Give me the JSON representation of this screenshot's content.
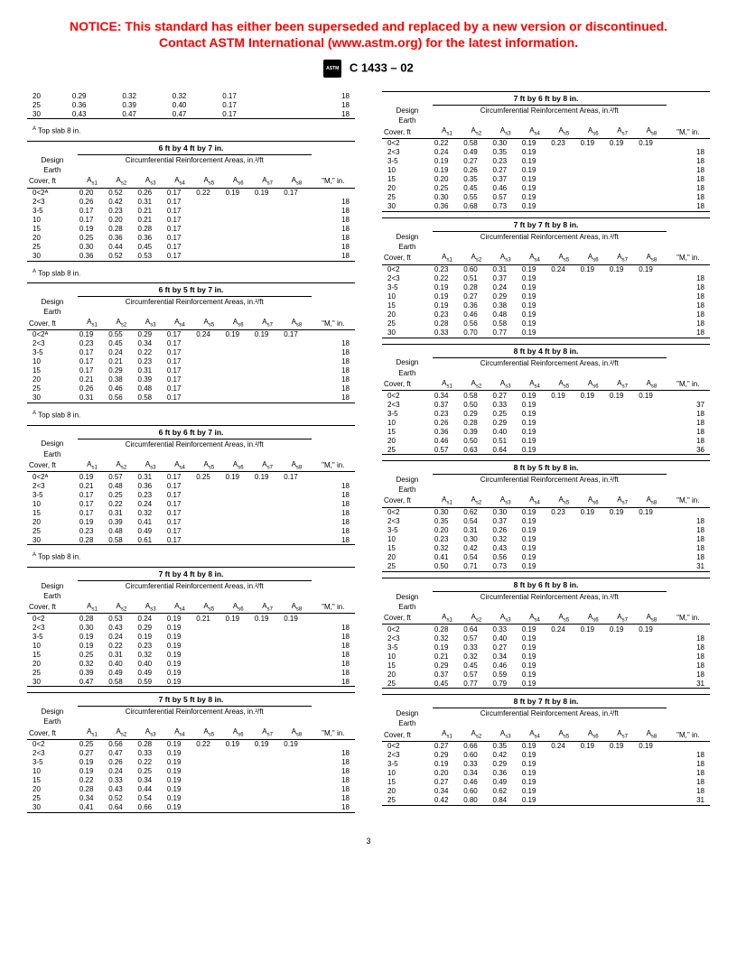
{
  "notice_line1": "NOTICE: This standard has either been superseded and replaced by a new version or discontinued.",
  "notice_line2": "Contact ASTM International (www.astm.org) for the latest information.",
  "standard": "C 1433 – 02",
  "page_number": "3",
  "col_headers": {
    "design": "Design",
    "earth": "Earth",
    "cover": "Cover, ft",
    "cra": "Circumferential Reinforcement Areas, in.²/ft",
    "a1": "A",
    "s1": "s1",
    "a2": "A",
    "s2": "s2",
    "a3": "A",
    "s3": "s3",
    "a4": "A",
    "s4": "s4",
    "a5": "A",
    "s5": "s5",
    "a6": "A",
    "s6": "s6",
    "a7": "A",
    "s7": "s7",
    "a8": "A",
    "s8": "s8",
    "m": "\"M,\" in."
  },
  "top_slab_note": "Top slab 8 in.",
  "sup_a": "A",
  "frag_rows": [
    [
      "20",
      "0.29",
      "0.32",
      "0.32",
      "0.17",
      "",
      "",
      "",
      "",
      "18"
    ],
    [
      "25",
      "0.36",
      "0.39",
      "0.40",
      "0.17",
      "",
      "",
      "",
      "",
      "18"
    ],
    [
      "30",
      "0.43",
      "0.47",
      "0.47",
      "0.17",
      "",
      "",
      "",
      "",
      "18"
    ]
  ],
  "tables": {
    "t6x4x7": {
      "title": "6 ft by 4 ft by 7 in.",
      "rows": [
        [
          "0<2ᴬ",
          "0.20",
          "0.52",
          "0.26",
          "0.17",
          "0.22",
          "0.19",
          "0.19",
          "0.17",
          ""
        ],
        [
          "2<3",
          "0.26",
          "0.42",
          "0.31",
          "0.17",
          "",
          "",
          "",
          "",
          "18"
        ],
        [
          "3-5",
          "0.17",
          "0.23",
          "0.21",
          "0.17",
          "",
          "",
          "",
          "",
          "18"
        ],
        [
          "10",
          "0.17",
          "0.20",
          "0.21",
          "0.17",
          "",
          "",
          "",
          "",
          "18"
        ],
        [
          "15",
          "0.19",
          "0.28",
          "0.28",
          "0.17",
          "",
          "",
          "",
          "",
          "18"
        ],
        [
          "20",
          "0.25",
          "0.36",
          "0.36",
          "0.17",
          "",
          "",
          "",
          "",
          "18"
        ],
        [
          "25",
          "0.30",
          "0.44",
          "0.45",
          "0.17",
          "",
          "",
          "",
          "",
          "18"
        ],
        [
          "30",
          "0.36",
          "0.52",
          "0.53",
          "0.17",
          "",
          "",
          "",
          "",
          "18"
        ]
      ]
    },
    "t6x5x7": {
      "title": "6 ft by 5 ft by 7 in.",
      "rows": [
        [
          "0<2ᴬ",
          "0.19",
          "0.55",
          "0.29",
          "0.17",
          "0.24",
          "0.19",
          "0.19",
          "0.17",
          ""
        ],
        [
          "2<3",
          "0.23",
          "0.45",
          "0.34",
          "0.17",
          "",
          "",
          "",
          "",
          "18"
        ],
        [
          "3-5",
          "0.17",
          "0.24",
          "0.22",
          "0.17",
          "",
          "",
          "",
          "",
          "18"
        ],
        [
          "10",
          "0.17",
          "0.21",
          "0.23",
          "0.17",
          "",
          "",
          "",
          "",
          "18"
        ],
        [
          "15",
          "0.17",
          "0.29",
          "0.31",
          "0.17",
          "",
          "",
          "",
          "",
          "18"
        ],
        [
          "20",
          "0.21",
          "0.38",
          "0.39",
          "0.17",
          "",
          "",
          "",
          "",
          "18"
        ],
        [
          "25",
          "0.26",
          "0.46",
          "0.48",
          "0.17",
          "",
          "",
          "",
          "",
          "18"
        ],
        [
          "30",
          "0.31",
          "0.56",
          "0.58",
          "0.17",
          "",
          "",
          "",
          "",
          "18"
        ]
      ]
    },
    "t6x6x7": {
      "title": "6 ft by 6 ft by 7 in.",
      "rows": [
        [
          "0<2ᴬ",
          "0.19",
          "0.57",
          "0.31",
          "0.17",
          "0.25",
          "0.19",
          "0.19",
          "0.17",
          ""
        ],
        [
          "2<3",
          "0.21",
          "0.48",
          "0.36",
          "0.17",
          "",
          "",
          "",
          "",
          "18"
        ],
        [
          "3-5",
          "0.17",
          "0.25",
          "0.23",
          "0.17",
          "",
          "",
          "",
          "",
          "18"
        ],
        [
          "10",
          "0.17",
          "0.22",
          "0.24",
          "0.17",
          "",
          "",
          "",
          "",
          "18"
        ],
        [
          "15",
          "0.17",
          "0.31",
          "0.32",
          "0.17",
          "",
          "",
          "",
          "",
          "18"
        ],
        [
          "20",
          "0.19",
          "0.39",
          "0.41",
          "0.17",
          "",
          "",
          "",
          "",
          "18"
        ],
        [
          "25",
          "0.23",
          "0.48",
          "0.49",
          "0.17",
          "",
          "",
          "",
          "",
          "18"
        ],
        [
          "30",
          "0.28",
          "0.58",
          "0.61",
          "0.17",
          "",
          "",
          "",
          "",
          "18"
        ]
      ]
    },
    "t7x4x8": {
      "title": "7 ft by 4 ft by 8 in.",
      "rows": [
        [
          "0<2",
          "0.28",
          "0.53",
          "0.24",
          "0.19",
          "0.21",
          "0.19",
          "0.19",
          "0.19",
          ""
        ],
        [
          "2<3",
          "0.30",
          "0.43",
          "0.29",
          "0.19",
          "",
          "",
          "",
          "",
          "18"
        ],
        [
          "3-5",
          "0.19",
          "0.24",
          "0.19",
          "0.19",
          "",
          "",
          "",
          "",
          "18"
        ],
        [
          "10",
          "0.19",
          "0.22",
          "0.23",
          "0.19",
          "",
          "",
          "",
          "",
          "18"
        ],
        [
          "15",
          "0.25",
          "0.31",
          "0.32",
          "0.19",
          "",
          "",
          "",
          "",
          "18"
        ],
        [
          "20",
          "0.32",
          "0.40",
          "0.40",
          "0.19",
          "",
          "",
          "",
          "",
          "18"
        ],
        [
          "25",
          "0.39",
          "0.49",
          "0.49",
          "0.19",
          "",
          "",
          "",
          "",
          "18"
        ],
        [
          "30",
          "0.47",
          "0.58",
          "0.59",
          "0.19",
          "",
          "",
          "",
          "",
          "18"
        ]
      ]
    },
    "t7x5x8": {
      "title": "7 ft by 5 ft by 8 in.",
      "rows": [
        [
          "0<2",
          "0.25",
          "0.56",
          "0.28",
          "0.19",
          "0.22",
          "0.19",
          "0.19",
          "0.19",
          ""
        ],
        [
          "2<3",
          "0.27",
          "0.47",
          "0.33",
          "0.19",
          "",
          "",
          "",
          "",
          "18"
        ],
        [
          "3-5",
          "0.19",
          "0.26",
          "0.22",
          "0.19",
          "",
          "",
          "",
          "",
          "18"
        ],
        [
          "10",
          "0.19",
          "0.24",
          "0.25",
          "0.19",
          "",
          "",
          "",
          "",
          "18"
        ],
        [
          "15",
          "0.22",
          "0.33",
          "0.34",
          "0.19",
          "",
          "",
          "",
          "",
          "18"
        ],
        [
          "20",
          "0.28",
          "0.43",
          "0.44",
          "0.19",
          "",
          "",
          "",
          "",
          "18"
        ],
        [
          "25",
          "0.34",
          "0.52",
          "0.54",
          "0.19",
          "",
          "",
          "",
          "",
          "18"
        ],
        [
          "30",
          "0.41",
          "0.64",
          "0.66",
          "0.19",
          "",
          "",
          "",
          "",
          "18"
        ]
      ]
    },
    "t7x6x8": {
      "title": "7 ft by 6 ft by 8 in.",
      "rows": [
        [
          "0<2",
          "0.22",
          "0.58",
          "0.30",
          "0.19",
          "0.23",
          "0.19",
          "0.19",
          "0.19",
          ""
        ],
        [
          "2<3",
          "0.24",
          "0.49",
          "0.35",
          "0.19",
          "",
          "",
          "",
          "",
          "18"
        ],
        [
          "3-5",
          "0.19",
          "0.27",
          "0.23",
          "0.19",
          "",
          "",
          "",
          "",
          "18"
        ],
        [
          "10",
          "0.19",
          "0.26",
          "0.27",
          "0.19",
          "",
          "",
          "",
          "",
          "18"
        ],
        [
          "15",
          "0.20",
          "0.35",
          "0.37",
          "0.19",
          "",
          "",
          "",
          "",
          "18"
        ],
        [
          "20",
          "0.25",
          "0.45",
          "0.46",
          "0.19",
          "",
          "",
          "",
          "",
          "18"
        ],
        [
          "25",
          "0.30",
          "0.55",
          "0.57",
          "0.19",
          "",
          "",
          "",
          "",
          "18"
        ],
        [
          "30",
          "0.36",
          "0.68",
          "0.73",
          "0.19",
          "",
          "",
          "",
          "",
          "18"
        ]
      ]
    },
    "t7x7x8": {
      "title": "7 ft by 7 ft by 8 in.",
      "rows": [
        [
          "0<2",
          "0.23",
          "0.60",
          "0.31",
          "0.19",
          "0.24",
          "0.19",
          "0.19",
          "0.19",
          ""
        ],
        [
          "2<3",
          "0.22",
          "0.51",
          "0.37",
          "0.19",
          "",
          "",
          "",
          "",
          "18"
        ],
        [
          "3-5",
          "0.19",
          "0.28",
          "0.24",
          "0.19",
          "",
          "",
          "",
          "",
          "18"
        ],
        [
          "10",
          "0.19",
          "0.27",
          "0.29",
          "0.19",
          "",
          "",
          "",
          "",
          "18"
        ],
        [
          "15",
          "0.19",
          "0.36",
          "0.38",
          "0.19",
          "",
          "",
          "",
          "",
          "18"
        ],
        [
          "20",
          "0.23",
          "0.46",
          "0.48",
          "0.19",
          "",
          "",
          "",
          "",
          "18"
        ],
        [
          "25",
          "0.28",
          "0.56",
          "0.58",
          "0.19",
          "",
          "",
          "",
          "",
          "18"
        ],
        [
          "30",
          "0.33",
          "0.70",
          "0.77",
          "0.19",
          "",
          "",
          "",
          "",
          "18"
        ]
      ]
    },
    "t8x4x8": {
      "title": "8 ft by 4 ft by 8 in.",
      "rows": [
        [
          "0<2",
          "0.34",
          "0.58",
          "0.27",
          "0.19",
          "0.19",
          "0.19",
          "0.19",
          "0.19",
          ""
        ],
        [
          "2<3",
          "0.37",
          "0.50",
          "0.33",
          "0.19",
          "",
          "",
          "",
          "",
          "37"
        ],
        [
          "3-5",
          "0.23",
          "0.29",
          "0.25",
          "0.19",
          "",
          "",
          "",
          "",
          "18"
        ],
        [
          "10",
          "0.26",
          "0.28",
          "0.29",
          "0.19",
          "",
          "",
          "",
          "",
          "18"
        ],
        [
          "15",
          "0.36",
          "0.39",
          "0.40",
          "0.19",
          "",
          "",
          "",
          "",
          "18"
        ],
        [
          "20",
          "0.46",
          "0.50",
          "0.51",
          "0.19",
          "",
          "",
          "",
          "",
          "18"
        ],
        [
          "25",
          "0.57",
          "0.63",
          "0.64",
          "0.19",
          "",
          "",
          "",
          "",
          "36"
        ]
      ]
    },
    "t8x5x8": {
      "title": "8 ft by 5 ft by 8 in.",
      "rows": [
        [
          "0<2",
          "0.30",
          "0.62",
          "0.30",
          "0.19",
          "0.23",
          "0.19",
          "0.19",
          "0.19",
          ""
        ],
        [
          "2<3",
          "0.35",
          "0.54",
          "0.37",
          "0.19",
          "",
          "",
          "",
          "",
          "18"
        ],
        [
          "3-5",
          "0.20",
          "0.31",
          "0.26",
          "0.19",
          "",
          "",
          "",
          "",
          "18"
        ],
        [
          "10",
          "0.23",
          "0.30",
          "0.32",
          "0.19",
          "",
          "",
          "",
          "",
          "18"
        ],
        [
          "15",
          "0.32",
          "0.42",
          "0.43",
          "0.19",
          "",
          "",
          "",
          "",
          "18"
        ],
        [
          "20",
          "0.41",
          "0.54",
          "0.56",
          "0.19",
          "",
          "",
          "",
          "",
          "18"
        ],
        [
          "25",
          "0.50",
          "0.71",
          "0.73",
          "0.19",
          "",
          "",
          "",
          "",
          "31"
        ]
      ]
    },
    "t8x6x8": {
      "title": "8 ft by 6 ft by 8 in.",
      "rows": [
        [
          "0<2",
          "0.28",
          "0.64",
          "0.33",
          "0.19",
          "0.24",
          "0.19",
          "0.19",
          "0.19",
          ""
        ],
        [
          "2<3",
          "0.32",
          "0.57",
          "0.40",
          "0.19",
          "",
          "",
          "",
          "",
          "18"
        ],
        [
          "3-5",
          "0.19",
          "0.33",
          "0.27",
          "0.19",
          "",
          "",
          "",
          "",
          "18"
        ],
        [
          "10",
          "0.21",
          "0.32",
          "0.34",
          "0.19",
          "",
          "",
          "",
          "",
          "18"
        ],
        [
          "15",
          "0.29",
          "0.45",
          "0.46",
          "0.19",
          "",
          "",
          "",
          "",
          "18"
        ],
        [
          "20",
          "0.37",
          "0.57",
          "0.59",
          "0.19",
          "",
          "",
          "",
          "",
          "18"
        ],
        [
          "25",
          "0.45",
          "0.77",
          "0.79",
          "0.19",
          "",
          "",
          "",
          "",
          "31"
        ]
      ]
    },
    "t8x7x8": {
      "title": "8 ft by 7 ft by 8 in.",
      "rows": [
        [
          "0<2",
          "0.27",
          "0.66",
          "0.35",
          "0.19",
          "0.24",
          "0.19",
          "0.19",
          "0.19",
          ""
        ],
        [
          "2<3",
          "0.29",
          "0.60",
          "0.42",
          "0.19",
          "",
          "",
          "",
          "",
          "18"
        ],
        [
          "3-5",
          "0.19",
          "0.33",
          "0.29",
          "0.19",
          "",
          "",
          "",
          "",
          "18"
        ],
        [
          "10",
          "0.20",
          "0.34",
          "0.36",
          "0.19",
          "",
          "",
          "",
          "",
          "18"
        ],
        [
          "15",
          "0.27",
          "0.46",
          "0.49",
          "0.19",
          "",
          "",
          "",
          "",
          "18"
        ],
        [
          "20",
          "0.34",
          "0.60",
          "0.62",
          "0.19",
          "",
          "",
          "",
          "",
          "18"
        ],
        [
          "25",
          "0.42",
          "0.80",
          "0.84",
          "0.19",
          "",
          "",
          "",
          "",
          "31"
        ]
      ]
    }
  },
  "style": {
    "notice_color": "#ff0000",
    "text_color": "#000000",
    "line_color": "#000000",
    "body_fontsize": 9,
    "table_fontsize": 8
  }
}
